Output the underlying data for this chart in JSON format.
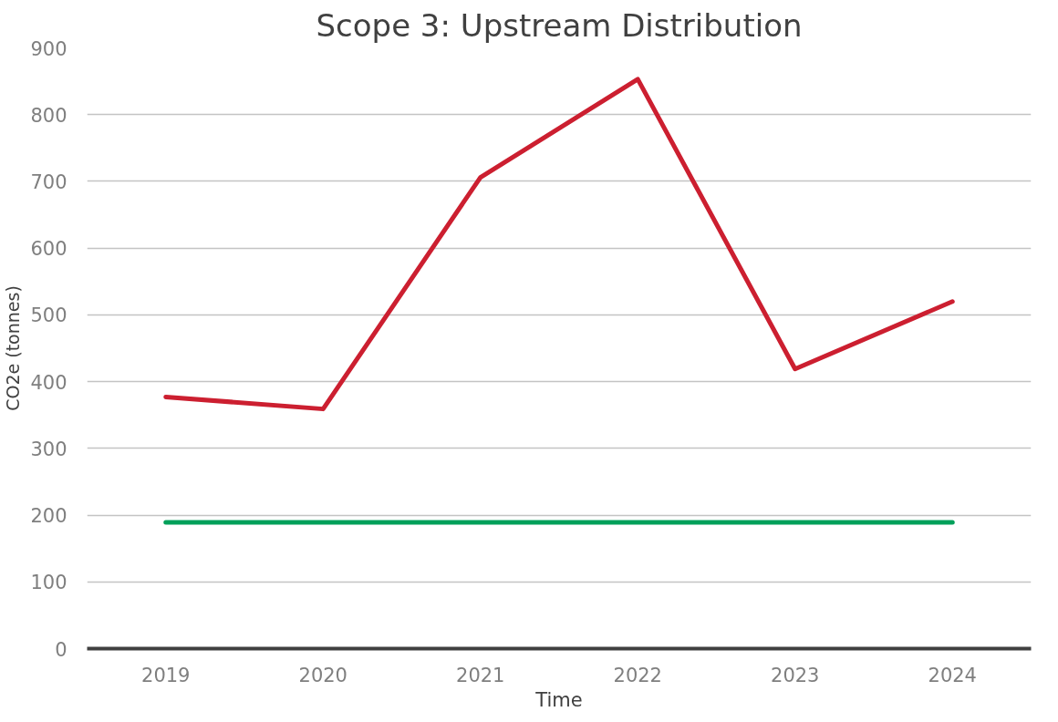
{
  "chart_data": {
    "type": "line",
    "title": "Scope 3: Upstream Distribution",
    "xlabel": "Time",
    "ylabel": "CO2e (tonnes)",
    "categories": [
      "2019",
      "2020",
      "2021",
      "2022",
      "2023",
      "2024"
    ],
    "series": [
      {
        "color": "#cc1f30",
        "values": [
          377,
          359,
          706,
          853,
          419,
          520
        ]
      },
      {
        "color": "#00a05a",
        "values": [
          189,
          189,
          189,
          189,
          189,
          189
        ]
      }
    ],
    "ylim": [
      0,
      900
    ],
    "yticks": [
      0,
      100,
      200,
      300,
      400,
      500,
      600,
      700,
      800,
      900
    ],
    "grid": "y",
    "line_style": "solid"
  }
}
